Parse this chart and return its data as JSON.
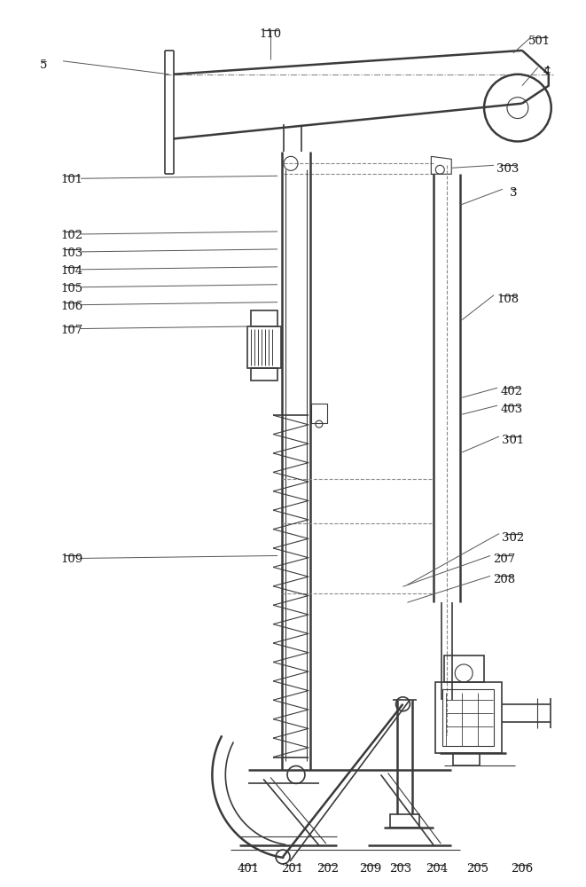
{
  "bg_color": "#ffffff",
  "lc": "#3a3a3a",
  "figsize": [
    6.61,
    10.0
  ],
  "dpi": 100,
  "labels_left": [
    "5",
    "101",
    "102",
    "103",
    "104",
    "105",
    "106",
    "107",
    "109"
  ],
  "labels_right_upper": [
    "501",
    "4",
    "303",
    "3"
  ],
  "labels_right_mid": [
    "108",
    "402",
    "403",
    "301",
    "302",
    "207",
    "208"
  ],
  "labels_bottom": [
    "401",
    "201",
    "202",
    "209",
    "203",
    "204",
    "205",
    "206"
  ],
  "label_110": "110"
}
